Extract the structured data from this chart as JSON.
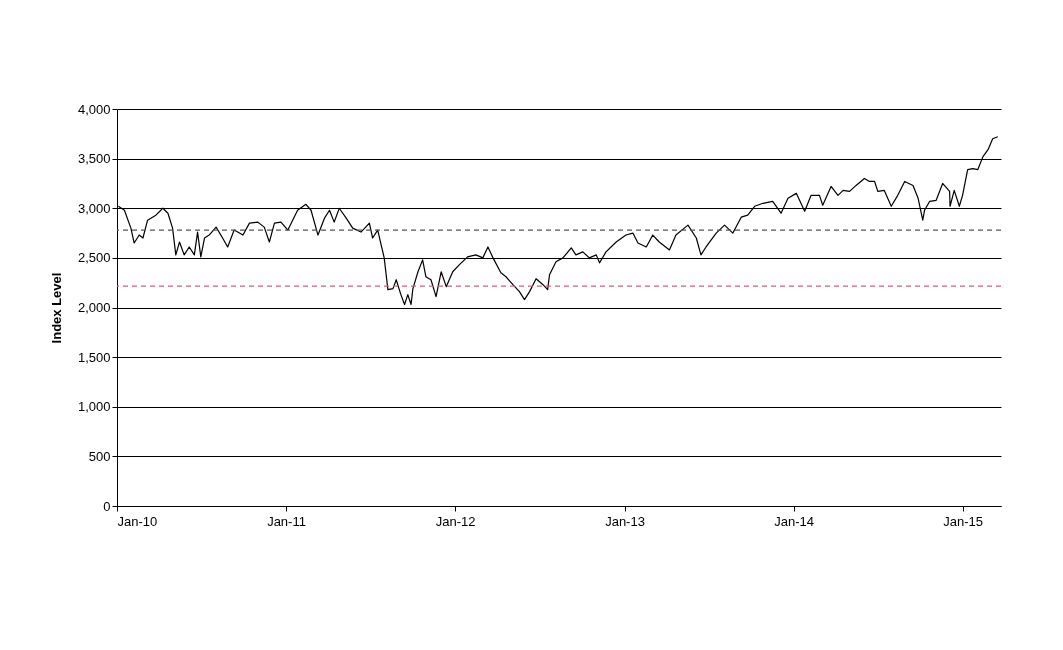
{
  "chart_data": {
    "type": "line",
    "ylabel": "Index Level",
    "x": [
      "2010-01-04",
      "2010-01-17",
      "2010-01-31",
      "2010-02-07",
      "2010-02-18",
      "2010-02-26",
      "2010-03-08",
      "2010-03-26",
      "2010-04-10",
      "2010-04-21",
      "2010-05-01",
      "2010-05-08",
      "2010-05-16",
      "2010-05-26",
      "2010-06-06",
      "2010-06-17",
      "2010-06-24",
      "2010-07-01",
      "2010-07-09",
      "2010-07-19",
      "2010-08-03",
      "2010-08-17",
      "2010-08-28",
      "2010-09-11",
      "2010-09-30",
      "2010-10-14",
      "2010-11-01",
      "2010-11-15",
      "2010-11-26",
      "2010-12-07",
      "2010-12-21",
      "2011-01-05",
      "2011-01-26",
      "2011-02-13",
      "2011-02-24",
      "2011-03-11",
      "2011-03-25",
      "2011-04-05",
      "2011-04-15",
      "2011-04-26",
      "2011-05-11",
      "2011-05-25",
      "2011-06-12",
      "2011-06-30",
      "2011-07-07",
      "2011-07-18",
      "2011-08-01",
      "2011-08-09",
      "2011-08-20",
      "2011-08-27",
      "2011-09-06",
      "2011-09-14",
      "2011-09-21",
      "2011-09-28",
      "2011-10-02",
      "2011-10-13",
      "2011-10-23",
      "2011-10-30",
      "2011-11-10",
      "2011-11-21",
      "2011-12-02",
      "2011-12-13",
      "2011-12-27",
      "2012-01-10",
      "2012-01-28",
      "2012-02-15",
      "2012-03-01",
      "2012-03-12",
      "2012-03-23",
      "2012-04-09",
      "2012-04-20",
      "2012-05-05",
      "2012-05-19",
      "2012-05-30",
      "2012-06-10",
      "2012-06-24",
      "2012-07-09",
      "2012-07-19",
      "2012-07-23",
      "2012-08-06",
      "2012-08-21",
      "2012-09-08",
      "2012-09-18",
      "2012-10-03",
      "2012-10-17",
      "2012-11-01",
      "2012-11-08",
      "2012-11-22",
      "2012-12-14",
      "2013-01-04",
      "2013-01-19",
      "2013-01-30",
      "2013-02-17",
      "2013-03-03",
      "2013-03-17",
      "2013-04-08",
      "2013-04-22",
      "2013-05-18",
      "2013-06-05",
      "2013-06-15",
      "2013-06-26",
      "2013-07-18",
      "2013-08-05",
      "2013-08-23",
      "2013-09-10",
      "2013-09-24",
      "2013-10-09",
      "2013-10-27",
      "2013-11-17",
      "2013-12-05",
      "2013-12-20",
      "2014-01-07",
      "2014-01-25",
      "2014-02-08",
      "2014-02-26",
      "2014-03-05",
      "2014-03-23",
      "2014-04-07",
      "2014-04-18",
      "2014-05-02",
      "2014-05-16",
      "2014-06-03",
      "2014-06-14",
      "2014-06-25",
      "2014-07-02",
      "2014-07-16",
      "2014-07-31",
      "2014-08-14",
      "2014-08-29",
      "2014-09-16",
      "2014-09-27",
      "2014-10-07",
      "2014-10-11",
      "2014-10-22",
      "2014-11-05",
      "2014-11-19",
      "2014-12-04",
      "2014-12-05",
      "2014-12-14",
      "2014-12-25",
      "2015-01-01",
      "2015-01-12",
      "2015-01-23",
      "2015-02-03",
      "2015-02-14",
      "2015-02-25",
      "2015-03-07",
      "2015-03-18"
    ],
    "series": [
      {
        "color": "#000000",
        "values": [
          3020,
          2980,
          2800,
          2650,
          2730,
          2700,
          2880,
          2930,
          3000,
          2950,
          2800,
          2530,
          2660,
          2530,
          2610,
          2530,
          2760,
          2510,
          2700,
          2730,
          2810,
          2700,
          2610,
          2780,
          2730,
          2850,
          2860,
          2810,
          2660,
          2850,
          2860,
          2780,
          2980,
          3040,
          2980,
          2730,
          2900,
          2980,
          2860,
          3000,
          2900,
          2800,
          2760,
          2850,
          2700,
          2780,
          2500,
          2180,
          2190,
          2280,
          2130,
          2030,
          2130,
          2030,
          2190,
          2360,
          2480,
          2310,
          2280,
          2110,
          2360,
          2210,
          2360,
          2430,
          2510,
          2530,
          2500,
          2610,
          2500,
          2350,
          2310,
          2230,
          2160,
          2080,
          2160,
          2290,
          2230,
          2180,
          2330,
          2460,
          2500,
          2600,
          2530,
          2560,
          2500,
          2530,
          2450,
          2560,
          2660,
          2730,
          2750,
          2650,
          2610,
          2730,
          2660,
          2580,
          2730,
          2830,
          2700,
          2530,
          2610,
          2750,
          2830,
          2750,
          2910,
          2930,
          3020,
          3050,
          3070,
          2950,
          3100,
          3150,
          2970,
          3130,
          3130,
          3030,
          3220,
          3130,
          3180,
          3170,
          3230,
          3300,
          3270,
          3270,
          3170,
          3180,
          3020,
          3130,
          3270,
          3230,
          3100,
          2880,
          2980,
          3070,
          3080,
          3250,
          3170,
          3020,
          3180,
          3020,
          3130,
          3390,
          3400,
          3390,
          3520,
          3590,
          3700,
          3720
        ]
      }
    ],
    "xlim": [
      "2010-01-01",
      "2015-03-25"
    ],
    "xticks": [
      {
        "value": "2010-01-01",
        "label": "Jan-10"
      },
      {
        "value": "2011-01-01",
        "label": "Jan-11"
      },
      {
        "value": "2012-01-01",
        "label": "Jan-12"
      },
      {
        "value": "2013-01-01",
        "label": "Jan-13"
      },
      {
        "value": "2014-01-01",
        "label": "Jan-14"
      },
      {
        "value": "2015-01-01",
        "label": "Jan-15"
      }
    ],
    "ylim": [
      0,
      4000
    ],
    "yticks": [
      0,
      500,
      {
        "value": 1000,
        "label": "1,000"
      },
      {
        "value": 1500,
        "label": "1,500"
      },
      {
        "value": 2000,
        "label": "2,000"
      },
      {
        "value": 2500,
        "label": "2,500"
      },
      {
        "value": 3000,
        "label": "3,000"
      },
      {
        "value": 3500,
        "label": "3,500"
      },
      {
        "value": 4000,
        "label": "4,000"
      }
    ],
    "grid": "y",
    "marker": "none",
    "line_style": "solid",
    "ref_lines": [
      {
        "axis": "y",
        "value": 2780,
        "color": "#555555",
        "line_style": "dashed"
      },
      {
        "axis": "y",
        "value": 2215,
        "color": "#d0607a",
        "line_style": "dashed"
      }
    ]
  }
}
